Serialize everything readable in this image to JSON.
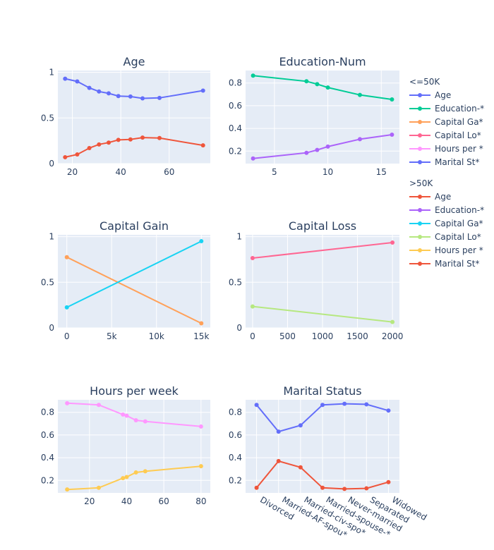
{
  "colors": {
    "plot_bg": "#e5ecf6",
    "grid": "#ffffff",
    "text": "#2a3f5f"
  },
  "legend": {
    "groups": [
      {
        "title": "<=50K",
        "items": [
          {
            "label": "Age",
            "color": "#636efa"
          },
          {
            "label": "Education-*",
            "color": "#00cc96"
          },
          {
            "label": "Capital Ga*",
            "color": "#ffa15a"
          },
          {
            "label": "Capital Lo*",
            "color": "#ff6692"
          },
          {
            "label": "Hours per *",
            "color": "#ff97ff"
          },
          {
            "label": "Marital St*",
            "color": "#636efa"
          }
        ]
      },
      {
        "title": ">50K",
        "items": [
          {
            "label": "Age",
            "color": "#ef553b"
          },
          {
            "label": "Education-*",
            "color": "#ab63fa"
          },
          {
            "label": "Capital Ga*",
            "color": "#19d3f3"
          },
          {
            "label": "Capital Lo*",
            "color": "#b6e880"
          },
          {
            "label": "Hours per *",
            "color": "#fecb52"
          },
          {
            "label": "Marital St*",
            "color": "#ef553b"
          }
        ]
      }
    ]
  },
  "chart_data": [
    {
      "type": "line",
      "title": "Age",
      "xlim": [
        14,
        77
      ],
      "ylim": [
        0,
        1.02
      ],
      "xticks": [
        {
          "v": 20,
          "label": "20"
        },
        {
          "v": 40,
          "label": "40"
        },
        {
          "v": 60,
          "label": "60"
        }
      ],
      "yticks": [
        {
          "v": 0,
          "label": "0"
        },
        {
          "v": 0.5,
          "label": "0.5"
        },
        {
          "v": 1,
          "label": "1"
        }
      ],
      "series": [
        {
          "color": "#636efa",
          "x": [
            17,
            22,
            27,
            31,
            35,
            39,
            44,
            49,
            56,
            74
          ],
          "y": [
            0.93,
            0.9,
            0.83,
            0.79,
            0.77,
            0.74,
            0.735,
            0.715,
            0.72,
            0.8
          ]
        },
        {
          "color": "#ef553b",
          "x": [
            17,
            22,
            27,
            31,
            35,
            39,
            44,
            49,
            56,
            74
          ],
          "y": [
            0.07,
            0.1,
            0.17,
            0.21,
            0.23,
            0.26,
            0.265,
            0.285,
            0.28,
            0.2
          ]
        }
      ]
    },
    {
      "type": "line",
      "title": "Education-Num",
      "xlim": [
        2.3,
        16.7
      ],
      "ylim": [
        0.09,
        0.91
      ],
      "xticks": [
        {
          "v": 5,
          "label": "5"
        },
        {
          "v": 10,
          "label": "10"
        },
        {
          "v": 15,
          "label": "15"
        }
      ],
      "yticks": [
        {
          "v": 0.2,
          "label": "0.2"
        },
        {
          "v": 0.4,
          "label": "0.4"
        },
        {
          "v": 0.6,
          "label": "0.6"
        },
        {
          "v": 0.8,
          "label": "0.8"
        }
      ],
      "series": [
        {
          "color": "#00cc96",
          "x": [
            3,
            8,
            9,
            10,
            13,
            16
          ],
          "y": [
            0.865,
            0.815,
            0.79,
            0.76,
            0.695,
            0.655
          ]
        },
        {
          "color": "#ab63fa",
          "x": [
            3,
            8,
            9,
            10,
            13,
            16
          ],
          "y": [
            0.135,
            0.185,
            0.21,
            0.24,
            0.305,
            0.345
          ]
        }
      ]
    },
    {
      "type": "line",
      "title": "Capital Gain",
      "xlim": [
        -1000,
        16000
      ],
      "ylim": [
        0,
        1.02
      ],
      "xticks": [
        {
          "v": 0,
          "label": "0"
        },
        {
          "v": 5000,
          "label": "5k"
        },
        {
          "v": 10000,
          "label": "10k"
        },
        {
          "v": 15000,
          "label": "15k"
        }
      ],
      "yticks": [
        {
          "v": 0,
          "label": "0"
        },
        {
          "v": 0.5,
          "label": "0.5"
        },
        {
          "v": 1,
          "label": "1"
        }
      ],
      "series": [
        {
          "color": "#ffa15a",
          "x": [
            0,
            15000
          ],
          "y": [
            0.775,
            0.05
          ]
        },
        {
          "color": "#19d3f3",
          "x": [
            0,
            15000
          ],
          "y": [
            0.225,
            0.95
          ]
        }
      ]
    },
    {
      "type": "line",
      "title": "Capital Loss",
      "xlim": [
        -100,
        2100
      ],
      "ylim": [
        0,
        1.02
      ],
      "xticks": [
        {
          "v": 0,
          "label": "0"
        },
        {
          "v": 500,
          "label": "500"
        },
        {
          "v": 1000,
          "label": "1000"
        },
        {
          "v": 1500,
          "label": "1500"
        },
        {
          "v": 2000,
          "label": "2000"
        }
      ],
      "yticks": [
        {
          "v": 0,
          "label": "0"
        },
        {
          "v": 0.5,
          "label": "0.5"
        },
        {
          "v": 1,
          "label": "1"
        }
      ],
      "series": [
        {
          "color": "#ff6692",
          "x": [
            0,
            2000
          ],
          "y": [
            0.765,
            0.935
          ]
        },
        {
          "color": "#b6e880",
          "x": [
            0,
            2000
          ],
          "y": [
            0.235,
            0.065
          ]
        }
      ]
    },
    {
      "type": "line",
      "title": "Hours per week",
      "xlim": [
        3,
        85
      ],
      "ylim": [
        0.09,
        0.91
      ],
      "xticks": [
        {
          "v": 20,
          "label": "20"
        },
        {
          "v": 40,
          "label": "40"
        },
        {
          "v": 60,
          "label": "60"
        },
        {
          "v": 80,
          "label": "80"
        }
      ],
      "yticks": [
        {
          "v": 0.2,
          "label": "0.2"
        },
        {
          "v": 0.4,
          "label": "0.4"
        },
        {
          "v": 0.6,
          "label": "0.6"
        },
        {
          "v": 0.8,
          "label": "0.8"
        }
      ],
      "series": [
        {
          "color": "#ff97ff",
          "x": [
            8,
            25,
            38,
            40,
            45,
            50,
            80
          ],
          "y": [
            0.88,
            0.865,
            0.78,
            0.77,
            0.73,
            0.72,
            0.675
          ]
        },
        {
          "color": "#fecb52",
          "x": [
            8,
            25,
            38,
            40,
            45,
            50,
            80
          ],
          "y": [
            0.12,
            0.135,
            0.22,
            0.23,
            0.27,
            0.28,
            0.325
          ]
        }
      ]
    },
    {
      "type": "line",
      "title": "Marital Status",
      "categories": [
        "Divorced",
        "Married-AF-spou*",
        "Married-civ-spo*",
        "Married-spouse-*",
        "Never-married",
        "Separated",
        "Widowed"
      ],
      "ylim": [
        0.09,
        0.91
      ],
      "yticks": [
        {
          "v": 0.2,
          "label": "0.2"
        },
        {
          "v": 0.4,
          "label": "0.4"
        },
        {
          "v": 0.6,
          "label": "0.6"
        },
        {
          "v": 0.8,
          "label": "0.8"
        }
      ],
      "series": [
        {
          "color": "#636efa",
          "values": [
            0.865,
            0.63,
            0.685,
            0.865,
            0.875,
            0.87,
            0.815
          ]
        },
        {
          "color": "#ef553b",
          "values": [
            0.135,
            0.37,
            0.315,
            0.135,
            0.125,
            0.13,
            0.185
          ]
        }
      ]
    }
  ]
}
